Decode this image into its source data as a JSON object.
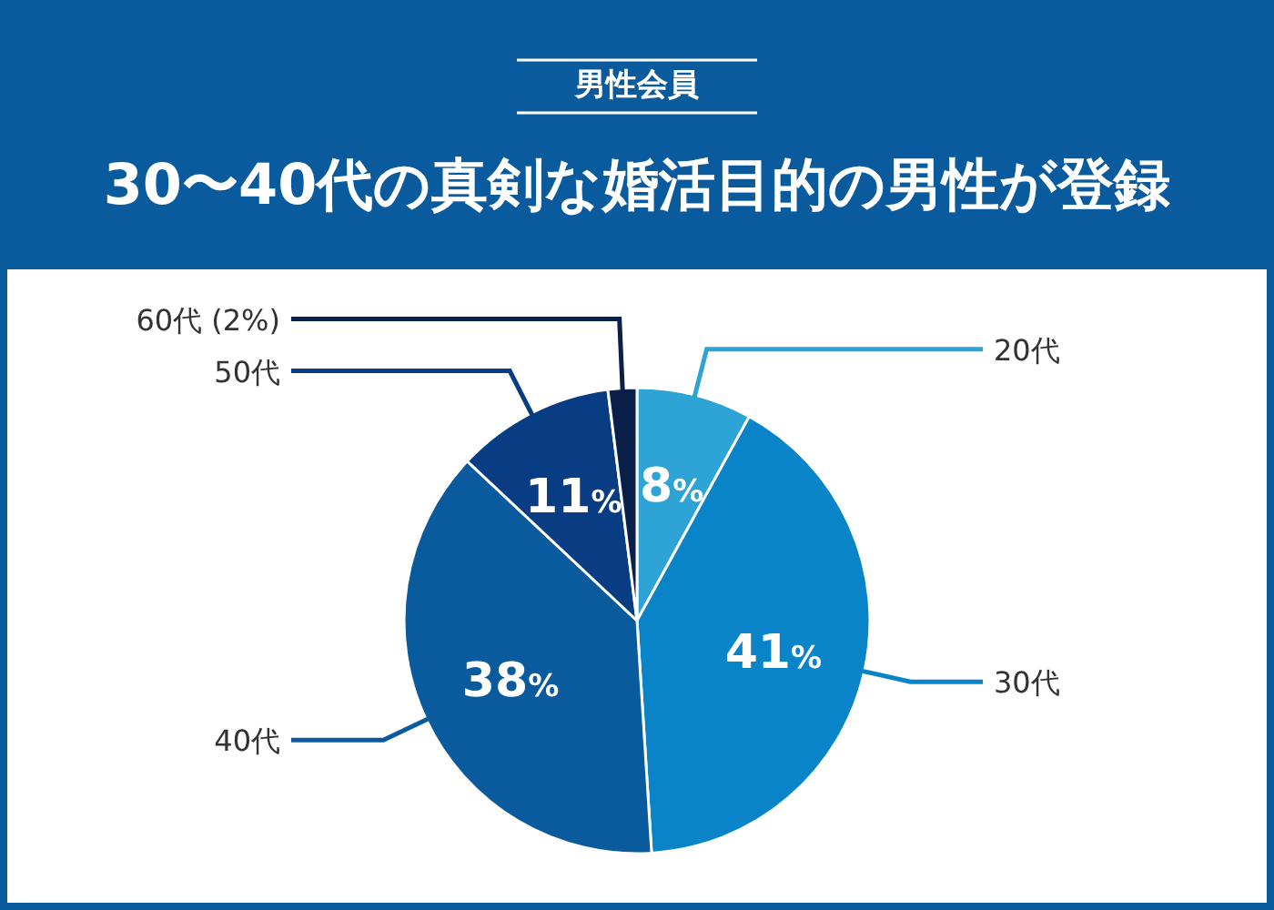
{
  "chart_data": {
    "type": "pie",
    "title": "30〜40代の真剣な婚活目的の男性が登録",
    "subtitle": "男性会員",
    "categories": [
      "20代",
      "30代",
      "40代",
      "50代",
      "60代"
    ],
    "values": [
      8,
      41,
      38,
      11,
      2
    ],
    "colors": [
      "#2ea3d6",
      "#0a84c8",
      "#0a5a9e",
      "#083d84",
      "#0a1f4a"
    ],
    "value_labels": [
      "8%",
      "41%",
      "38%",
      "11%",
      "(2%)"
    ]
  }
}
